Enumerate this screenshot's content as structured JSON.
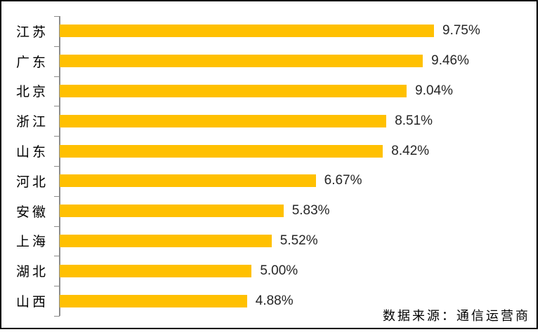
{
  "chart_data": {
    "type": "bar",
    "orientation": "horizontal",
    "title": "",
    "xlabel": "",
    "ylabel": "",
    "categories": [
      "江苏",
      "广东",
      "北京",
      "浙江",
      "山东",
      "河北",
      "安徽",
      "上海",
      "湖北",
      "山西"
    ],
    "values": [
      9.75,
      9.46,
      9.04,
      8.51,
      8.42,
      6.67,
      5.83,
      5.52,
      5.0,
      4.88
    ],
    "value_labels": [
      "9.75%",
      "9.46%",
      "9.04%",
      "8.51%",
      "8.42%",
      "6.67%",
      "5.83%",
      "5.52%",
      "5.00%",
      "4.88%"
    ],
    "xlim": [
      0,
      12
    ],
    "grid": false,
    "legend": "none",
    "colors": {
      "bar": "#FFC000",
      "axis": "#8C8C8C",
      "category_label": "#000000",
      "value_label": "#262626",
      "frame": "#000000",
      "background": "#FFFFFF"
    },
    "source_note": "数据来源：通信运营商"
  }
}
